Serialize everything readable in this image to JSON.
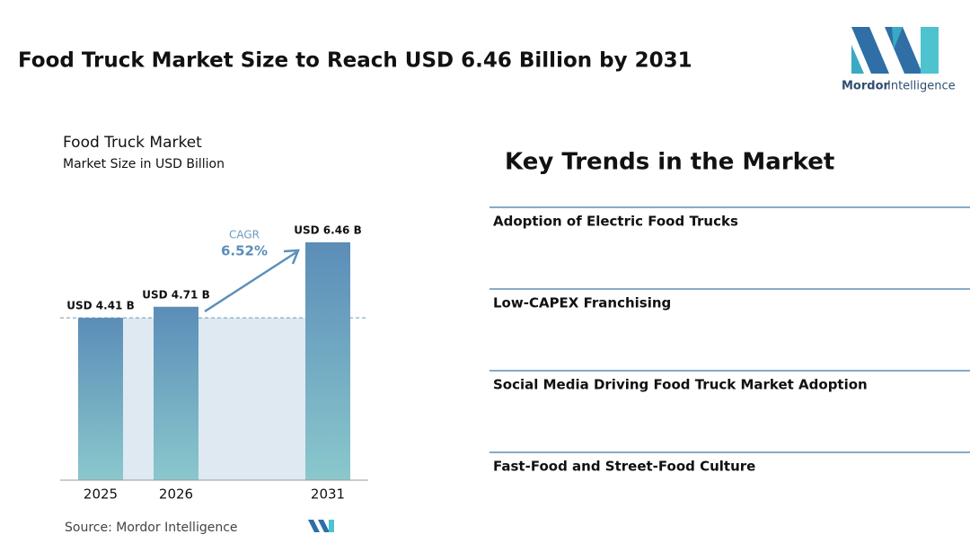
{
  "header": {
    "title": "Food Truck Market Size to Reach USD 6.46 Billion by 2031",
    "logo_brand": "Mordor",
    "logo_suffix": "Intelligence"
  },
  "chart_data": {
    "type": "bar",
    "title": "Food Truck Market",
    "subtitle": "Market Size in USD Billion",
    "categories": [
      "2025",
      "2026",
      "2031"
    ],
    "values": [
      4.41,
      4.71,
      6.46
    ],
    "value_labels": [
      "USD 4.41 B",
      "USD 4.71 B",
      "USD 6.46 B"
    ],
    "annotation": {
      "label": "CAGR",
      "value": "6.52%"
    },
    "source": "Source: Mordor Intelligence"
  },
  "trends": {
    "title": "Key Trends in the Market",
    "items": [
      "Adoption of Electric Food Trucks",
      "Low-CAPEX Franchising",
      "Social Media Driving Food Truck Market Adoption",
      "Fast-Food and Street-Food Culture"
    ]
  }
}
